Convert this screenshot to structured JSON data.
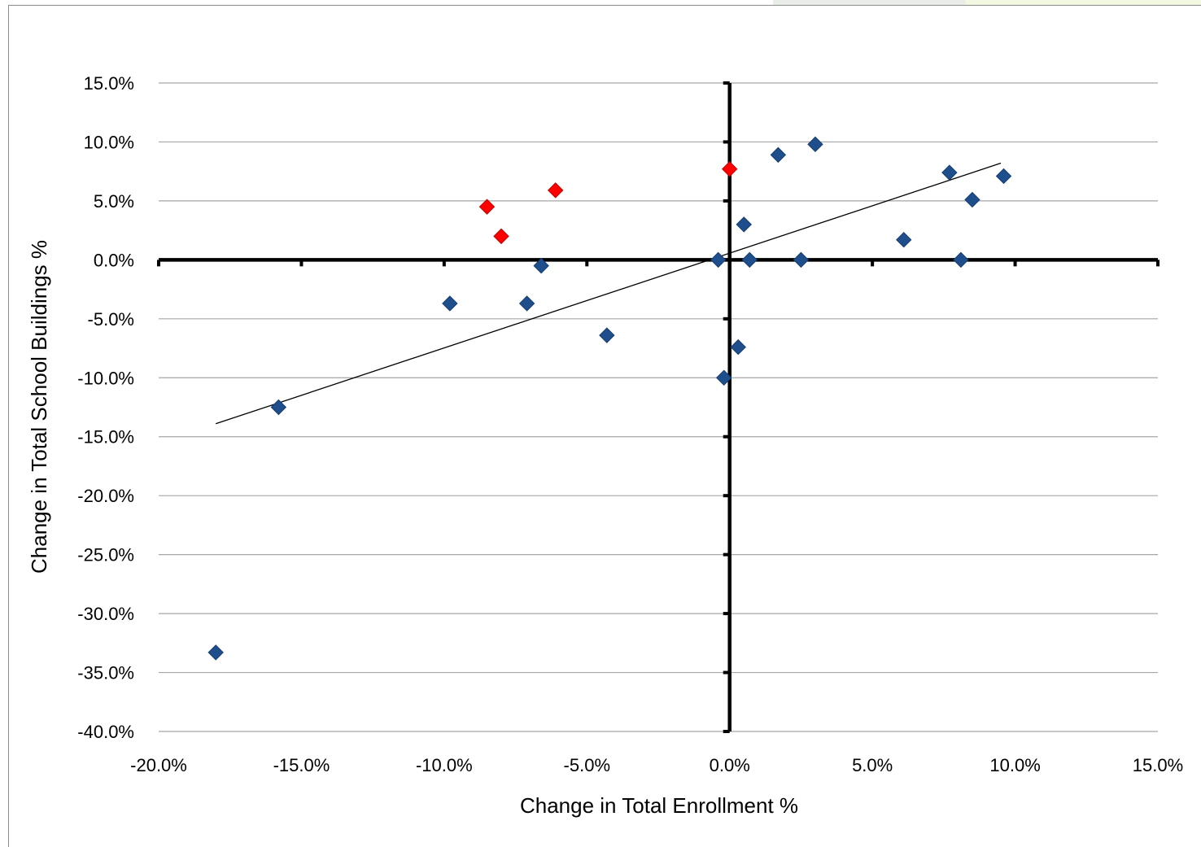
{
  "chart_data": {
    "type": "scatter",
    "title": "",
    "xlabel": "Change in Total Enrollment %",
    "ylabel": "Change in Total School Buildings %",
    "xlim": [
      -20,
      15
    ],
    "ylim": [
      -40,
      15
    ],
    "x_ticks": [
      -20,
      -15,
      -10,
      -5,
      0,
      5,
      10,
      15
    ],
    "y_ticks": [
      15,
      10,
      5,
      0,
      -5,
      -10,
      -15,
      -20,
      -25,
      -30,
      -35,
      -40
    ],
    "x_tick_labels": [
      "-20.0%",
      "-15.0%",
      "-10.0%",
      "-5.0%",
      "0.0%",
      "5.0%",
      "10.0%",
      "15.0%"
    ],
    "y_tick_labels": [
      "15.0%",
      "10.0%",
      "5.0%",
      "0.0%",
      "-5.0%",
      "-10.0%",
      "-15.0%",
      "-20.0%",
      "-25.0%",
      "-30.0%",
      "-35.0%",
      "-40.0%"
    ],
    "grid": "horizontal",
    "legend": "none",
    "colors": {
      "series_blue": "#1f4e8c",
      "series_red": "#ff0000",
      "trendline": "#000000",
      "gridline": "#a6a6a6"
    },
    "series": [
      {
        "marker": "diamond",
        "color": "#1f4e8c",
        "points": [
          [
            -18.0,
            -33.3
          ],
          [
            -15.8,
            -12.5
          ],
          [
            -9.8,
            -3.7
          ],
          [
            -7.1,
            -3.7
          ],
          [
            -6.6,
            -0.5
          ],
          [
            -4.3,
            -6.4
          ],
          [
            -0.4,
            0.0
          ],
          [
            -0.2,
            -10.0
          ],
          [
            0.3,
            -7.4
          ],
          [
            0.5,
            3.0
          ],
          [
            0.7,
            0.0
          ],
          [
            1.7,
            8.9
          ],
          [
            2.5,
            0.0
          ],
          [
            3.0,
            9.8
          ],
          [
            6.1,
            1.7
          ],
          [
            7.7,
            7.4
          ],
          [
            8.1,
            0.0
          ],
          [
            8.5,
            5.1
          ],
          [
            9.6,
            7.1
          ]
        ]
      },
      {
        "marker": "diamond",
        "color": "#ff0000",
        "points": [
          [
            -8.5,
            4.5
          ],
          [
            -8.0,
            2.0
          ],
          [
            -6.1,
            5.9
          ],
          [
            0.0,
            7.7
          ]
        ]
      }
    ],
    "trendline": {
      "x": [
        -18.0,
        9.5
      ],
      "y": [
        -13.9,
        8.2
      ]
    }
  }
}
